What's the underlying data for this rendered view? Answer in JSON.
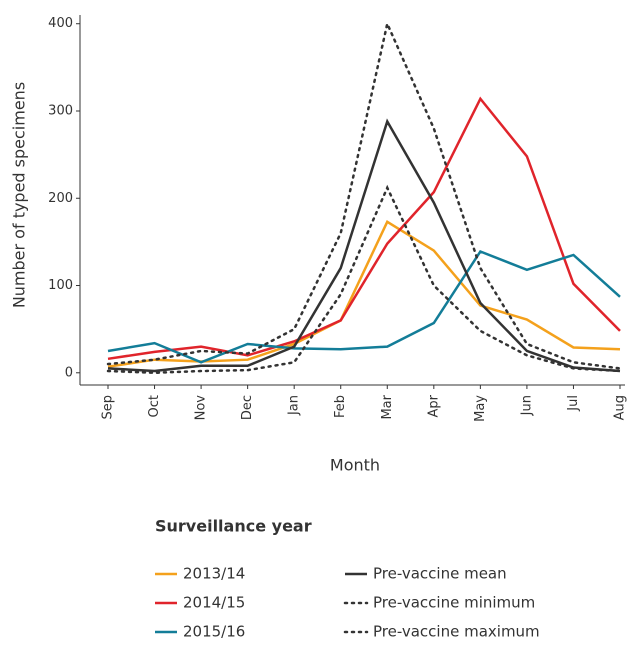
{
  "chart_data": {
    "type": "line",
    "x_label": "Month",
    "y_label": "Number of typed specimens",
    "legend_title": "Surveillance year",
    "categories": [
      "Sep",
      "Oct",
      "Nov",
      "Dec",
      "Jan",
      "Feb",
      "Mar",
      "Apr",
      "May",
      "Jun",
      "Jul",
      "Aug"
    ],
    "ylim": [
      -14,
      410
    ],
    "yticks": [
      0,
      100,
      200,
      300,
      400
    ],
    "series": [
      {
        "name": "2013/14",
        "color": "#f4a11c",
        "style": "solid",
        "values": [
          7,
          15,
          13,
          15,
          33,
          60,
          173,
          140,
          77,
          61,
          29,
          27
        ]
      },
      {
        "name": "2014/15",
        "color": "#e0242b",
        "style": "solid",
        "values": [
          16,
          24,
          30,
          20,
          36,
          60,
          148,
          207,
          314,
          248,
          102,
          48
        ]
      },
      {
        "name": "2015/16",
        "color": "#137d98",
        "style": "solid",
        "values": [
          25,
          34,
          12,
          33,
          28,
          27,
          30,
          57,
          139,
          118,
          135,
          87
        ]
      },
      {
        "name": "Pre-vaccine mean",
        "color": "#333333",
        "style": "solid",
        "values": [
          5,
          2,
          8,
          8,
          30,
          120,
          288,
          195,
          80,
          25,
          6,
          2
        ]
      },
      {
        "name": "Pre-vaccine minimum",
        "color": "#333333",
        "style": "dotted",
        "values": [
          2,
          0,
          2,
          3,
          12,
          90,
          212,
          100,
          48,
          20,
          5,
          2
        ]
      },
      {
        "name": "Pre-vaccine maximum",
        "color": "#333333",
        "style": "dotted",
        "values": [
          10,
          15,
          25,
          22,
          50,
          160,
          400,
          280,
          120,
          33,
          12,
          5
        ]
      }
    ]
  }
}
